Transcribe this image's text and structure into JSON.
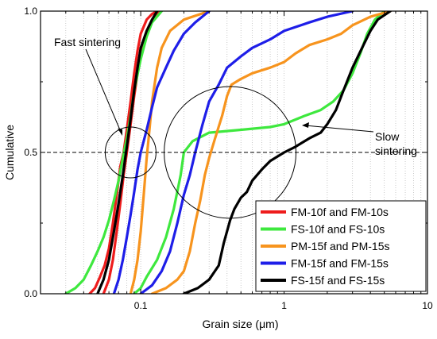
{
  "chart_data": {
    "type": "line",
    "title": "",
    "xlabel": "Grain size (μm)",
    "ylabel": "Cumulative",
    "x_scale": "log",
    "xlim": [
      0.02,
      10
    ],
    "ylim": [
      0.0,
      1.0
    ],
    "x_ticks": [
      {
        "value": 0.1,
        "label": "0.1"
      },
      {
        "value": 1,
        "label": "1"
      },
      {
        "value": 10,
        "label": "10"
      }
    ],
    "y_ticks": [
      {
        "value": 0.0,
        "label": "0.0"
      },
      {
        "value": 0.5,
        "label": "0.5"
      },
      {
        "value": 1.0,
        "label": "1.0"
      }
    ],
    "grid": "vertical dotted at log minor ticks",
    "reference_line": {
      "y": 0.5,
      "style": "dashed"
    },
    "legend_position": "bottom-right",
    "annotations": [
      {
        "text": "Fast sintering",
        "circle_center": [
          0.085,
          0.5
        ]
      },
      {
        "text": "Slow\nsintering",
        "circle_center": [
          0.42,
          0.5
        ]
      }
    ],
    "series": [
      {
        "name": "FM-10f  and FM-10s",
        "color": "#ee1c1c",
        "curves": [
          [
            [
              0.044,
              0
            ],
            [
              0.048,
              0.02
            ],
            [
              0.052,
              0.06
            ],
            [
              0.056,
              0.1
            ],
            [
              0.06,
              0.16
            ],
            [
              0.064,
              0.25
            ],
            [
              0.068,
              0.35
            ],
            [
              0.072,
              0.45
            ],
            [
              0.076,
              0.5
            ],
            [
              0.08,
              0.58
            ],
            [
              0.085,
              0.68
            ],
            [
              0.09,
              0.78
            ],
            [
              0.095,
              0.86
            ],
            [
              0.1,
              0.92
            ],
            [
              0.11,
              0.97
            ],
            [
              0.12,
              0.99
            ],
            [
              0.13,
              1.0
            ]
          ],
          [
            [
              0.055,
              0
            ],
            [
              0.06,
              0.05
            ],
            [
              0.064,
              0.12
            ],
            [
              0.068,
              0.22
            ],
            [
              0.072,
              0.32
            ],
            [
              0.076,
              0.42
            ],
            [
              0.08,
              0.5
            ],
            [
              0.085,
              0.6
            ],
            [
              0.09,
              0.7
            ],
            [
              0.095,
              0.78
            ],
            [
              0.1,
              0.85
            ],
            [
              0.11,
              0.93
            ],
            [
              0.12,
              0.97
            ],
            [
              0.135,
              1.0
            ]
          ]
        ]
      },
      {
        "name": "FS-10f  and FS-10s",
        "color": "#3ee83e",
        "curves": [
          [
            [
              0.03,
              0
            ],
            [
              0.035,
              0.02
            ],
            [
              0.04,
              0.05
            ],
            [
              0.045,
              0.1
            ],
            [
              0.05,
              0.15
            ],
            [
              0.055,
              0.2
            ],
            [
              0.06,
              0.26
            ],
            [
              0.065,
              0.33
            ],
            [
              0.07,
              0.4
            ],
            [
              0.075,
              0.48
            ],
            [
              0.08,
              0.55
            ],
            [
              0.085,
              0.63
            ],
            [
              0.09,
              0.72
            ],
            [
              0.1,
              0.83
            ],
            [
              0.11,
              0.91
            ],
            [
              0.12,
              0.96
            ],
            [
              0.14,
              1.0
            ]
          ],
          [
            [
              0.09,
              0
            ],
            [
              0.1,
              0.02
            ],
            [
              0.11,
              0.06
            ],
            [
              0.13,
              0.12
            ],
            [
              0.15,
              0.2
            ],
            [
              0.17,
              0.3
            ],
            [
              0.19,
              0.42
            ],
            [
              0.2,
              0.5
            ],
            [
              0.23,
              0.54
            ],
            [
              0.3,
              0.57
            ],
            [
              0.5,
              0.58
            ],
            [
              0.8,
              0.59
            ],
            [
              1.0,
              0.6
            ],
            [
              1.4,
              0.63
            ],
            [
              1.8,
              0.65
            ],
            [
              2.2,
              0.68
            ],
            [
              2.6,
              0.72
            ],
            [
              3.0,
              0.78
            ],
            [
              3.4,
              0.85
            ],
            [
              3.8,
              0.92
            ],
            [
              4.3,
              0.97
            ],
            [
              5.0,
              1.0
            ]
          ]
        ]
      },
      {
        "name": "PM-15f and PM-15s",
        "color": "#f7941e",
        "curves": [
          [
            [
              0.085,
              0
            ],
            [
              0.09,
              0.05
            ],
            [
              0.095,
              0.12
            ],
            [
              0.1,
              0.22
            ],
            [
              0.105,
              0.35
            ],
            [
              0.11,
              0.48
            ],
            [
              0.115,
              0.58
            ],
            [
              0.12,
              0.68
            ],
            [
              0.13,
              0.8
            ],
            [
              0.14,
              0.87
            ],
            [
              0.16,
              0.93
            ],
            [
              0.2,
              0.97
            ],
            [
              0.3,
              1.0
            ]
          ],
          [
            [
              0.12,
              0
            ],
            [
              0.15,
              0.02
            ],
            [
              0.18,
              0.05
            ],
            [
              0.2,
              0.08
            ],
            [
              0.22,
              0.15
            ],
            [
              0.24,
              0.25
            ],
            [
              0.26,
              0.33
            ],
            [
              0.28,
              0.42
            ],
            [
              0.3,
              0.48
            ],
            [
              0.33,
              0.55
            ],
            [
              0.37,
              0.63
            ],
            [
              0.4,
              0.7
            ],
            [
              0.43,
              0.74
            ],
            [
              0.5,
              0.76
            ],
            [
              0.6,
              0.78
            ],
            [
              0.8,
              0.8
            ],
            [
              1.0,
              0.82
            ],
            [
              1.2,
              0.85
            ],
            [
              1.5,
              0.88
            ],
            [
              2.0,
              0.9
            ],
            [
              2.5,
              0.92
            ],
            [
              3.0,
              0.95
            ],
            [
              4.0,
              0.98
            ],
            [
              5.5,
              1.0
            ]
          ]
        ]
      },
      {
        "name": "FM-15f and FM-15s",
        "color": "#1e1ee8",
        "curves": [
          [
            [
              0.065,
              0
            ],
            [
              0.07,
              0.05
            ],
            [
              0.075,
              0.12
            ],
            [
              0.08,
              0.2
            ],
            [
              0.085,
              0.28
            ],
            [
              0.09,
              0.36
            ],
            [
              0.095,
              0.44
            ],
            [
              0.1,
              0.5
            ],
            [
              0.11,
              0.58
            ],
            [
              0.12,
              0.66
            ],
            [
              0.13,
              0.73
            ],
            [
              0.15,
              0.8
            ],
            [
              0.17,
              0.86
            ],
            [
              0.2,
              0.92
            ],
            [
              0.24,
              0.96
            ],
            [
              0.3,
              1.0
            ]
          ],
          [
            [
              0.1,
              0
            ],
            [
              0.12,
              0.03
            ],
            [
              0.14,
              0.08
            ],
            [
              0.16,
              0.15
            ],
            [
              0.18,
              0.25
            ],
            [
              0.2,
              0.35
            ],
            [
              0.22,
              0.42
            ],
            [
              0.24,
              0.5
            ],
            [
              0.27,
              0.6
            ],
            [
              0.3,
              0.68
            ],
            [
              0.35,
              0.74
            ],
            [
              0.4,
              0.8
            ],
            [
              0.5,
              0.84
            ],
            [
              0.6,
              0.87
            ],
            [
              0.8,
              0.9
            ],
            [
              1.0,
              0.93
            ],
            [
              1.5,
              0.96
            ],
            [
              2.0,
              0.98
            ],
            [
              3.0,
              1.0
            ]
          ]
        ]
      },
      {
        "name": "FS-15f  and FS-15s",
        "color": "#000000",
        "curves": [
          [
            [
              0.05,
              0
            ],
            [
              0.055,
              0.05
            ],
            [
              0.06,
              0.12
            ],
            [
              0.065,
              0.22
            ],
            [
              0.07,
              0.32
            ],
            [
              0.075,
              0.42
            ],
            [
              0.08,
              0.52
            ],
            [
              0.085,
              0.62
            ],
            [
              0.09,
              0.72
            ],
            [
              0.095,
              0.8
            ],
            [
              0.1,
              0.87
            ],
            [
              0.11,
              0.93
            ],
            [
              0.12,
              0.97
            ],
            [
              0.13,
              1.0
            ]
          ],
          [
            [
              0.2,
              0
            ],
            [
              0.25,
              0.02
            ],
            [
              0.3,
              0.05
            ],
            [
              0.35,
              0.1
            ],
            [
              0.38,
              0.18
            ],
            [
              0.42,
              0.26
            ],
            [
              0.45,
              0.3
            ],
            [
              0.5,
              0.34
            ],
            [
              0.55,
              0.36
            ],
            [
              0.6,
              0.4
            ],
            [
              0.7,
              0.44
            ],
            [
              0.8,
              0.47
            ],
            [
              1.0,
              0.5
            ],
            [
              1.2,
              0.52
            ],
            [
              1.5,
              0.55
            ],
            [
              1.8,
              0.57
            ],
            [
              2.0,
              0.6
            ],
            [
              2.3,
              0.65
            ],
            [
              2.6,
              0.72
            ],
            [
              3.0,
              0.8
            ],
            [
              3.5,
              0.87
            ],
            [
              4.0,
              0.93
            ],
            [
              4.5,
              0.97
            ],
            [
              5.5,
              1.0
            ]
          ]
        ]
      }
    ]
  }
}
